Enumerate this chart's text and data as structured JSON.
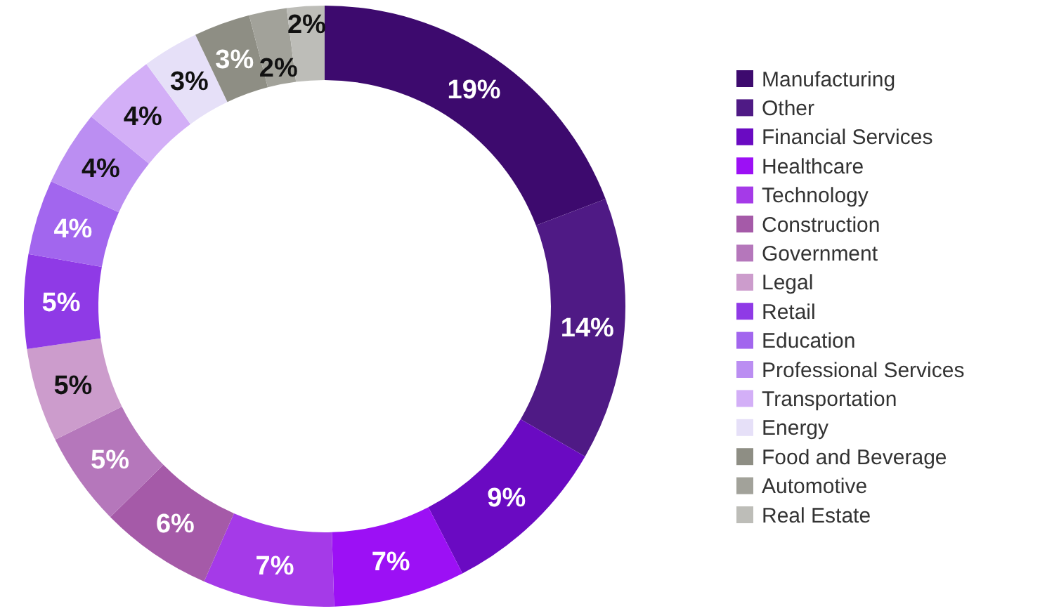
{
  "chart_data": {
    "type": "donut",
    "categories": [
      "Manufacturing",
      "Other",
      "Financial Services",
      "Healthcare",
      "Technology",
      "Construction",
      "Government",
      "Legal",
      "Retail",
      "Education",
      "Professional Services",
      "Transportation",
      "Energy",
      "Food and Beverage",
      "Automotive",
      "Real Estate"
    ],
    "values": [
      19,
      14,
      9,
      7,
      7,
      6,
      5,
      5,
      5,
      4,
      4,
      4,
      3,
      3,
      2,
      2
    ],
    "colors": [
      "#3d0a6e",
      "#4f1a85",
      "#6a0ac2",
      "#9c10f5",
      "#a53ae8",
      "#a55aa8",
      "#b577bb",
      "#cc9ccc",
      "#8f3ae6",
      "#a266ee",
      "#bb8ef2",
      "#d3aff7",
      "#e6e0f8",
      "#8e8e84",
      "#a2a29a",
      "#bdbdb8"
    ],
    "value_labels": [
      "19%",
      "14%",
      "9%",
      "7%",
      "7%",
      "6%",
      "5%",
      "5%",
      "5%",
      "4%",
      "4%",
      "4%",
      "3%",
      "3%",
      "2%",
      "2%"
    ],
    "legend": "right"
  }
}
